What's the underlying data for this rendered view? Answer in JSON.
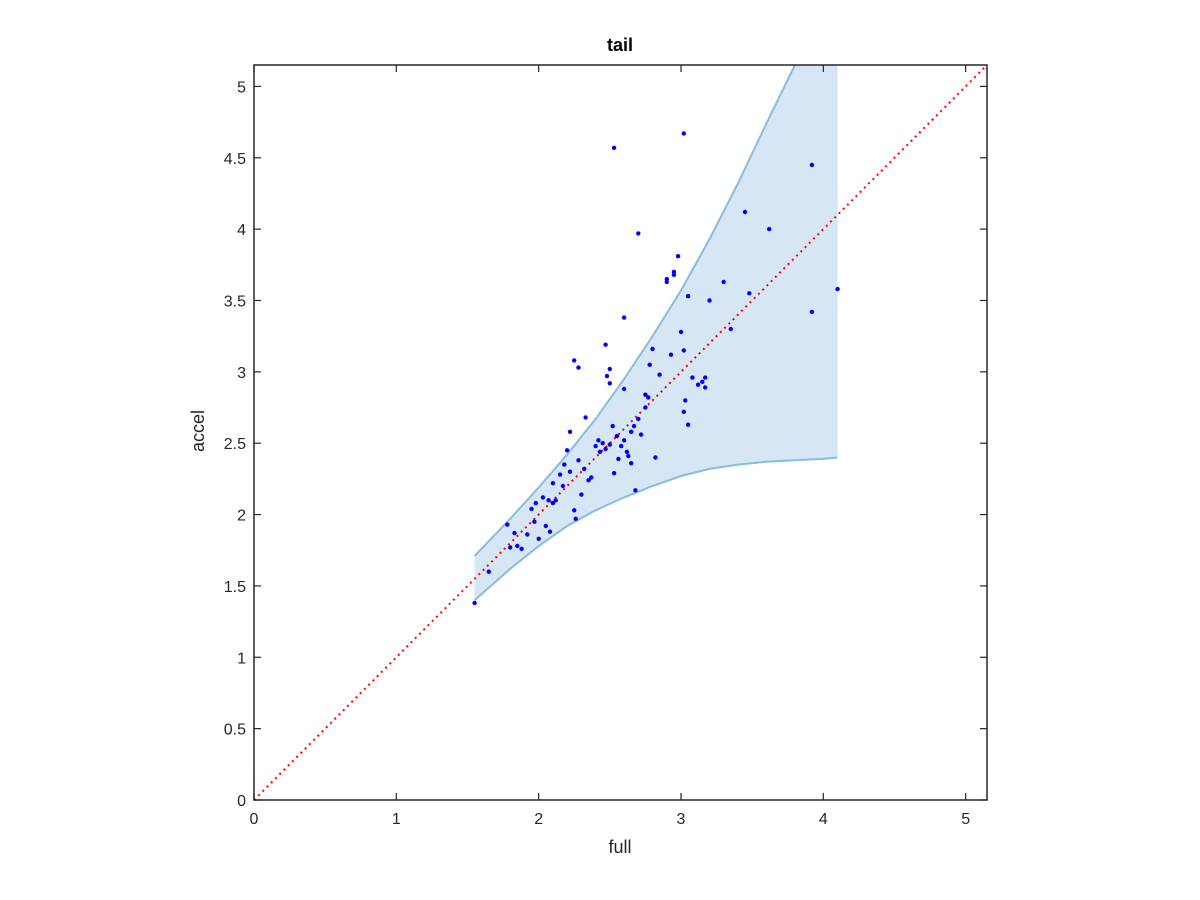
{
  "chart_data": {
    "type": "scatter",
    "title": "tail",
    "xlabel": "full",
    "ylabel": "accel",
    "xlim": [
      0,
      5.15
    ],
    "ylim": [
      0,
      5.15
    ],
    "xticks": [
      0,
      1,
      2,
      3,
      4,
      5
    ],
    "xtick_labels": [
      "0",
      "1",
      "2",
      "3",
      "4",
      "5"
    ],
    "yticks": [
      0,
      0.5,
      1,
      1.5,
      2,
      2.5,
      3,
      3.5,
      4,
      4.5,
      5
    ],
    "ytick_labels": [
      "0",
      "0.5",
      "1",
      "1.5",
      "2",
      "2.5",
      "3",
      "3.5",
      "4",
      "4.5",
      "5"
    ],
    "grid": false,
    "colors": {
      "points": "#0000ff",
      "band_fill": "#d6e6f4",
      "band_edge": "#86bde0",
      "reference_line": "#ff0000",
      "axes": "#262626"
    },
    "reference_line": {
      "style": "dotted",
      "x": [
        0,
        5.15
      ],
      "y": [
        0,
        5.15
      ]
    },
    "band": {
      "x": [
        1.55,
        1.8,
        2.0,
        2.2,
        2.4,
        2.6,
        2.8,
        3.0,
        3.2,
        3.4,
        3.6,
        3.8,
        4.0,
        4.1
      ],
      "upper": [
        1.71,
        1.97,
        2.19,
        2.42,
        2.67,
        2.95,
        3.25,
        3.57,
        3.93,
        4.32,
        4.74,
        5.15,
        5.15,
        5.15
      ],
      "lower": [
        1.4,
        1.62,
        1.78,
        1.92,
        2.03,
        2.12,
        2.2,
        2.27,
        2.32,
        2.35,
        2.37,
        2.38,
        2.39,
        2.4
      ]
    },
    "series": [
      {
        "x": [
          1.55,
          1.65,
          1.78,
          1.8,
          1.83,
          1.85,
          1.88,
          1.92,
          1.95,
          1.97,
          1.98,
          2.0,
          2.03,
          2.05,
          2.07,
          2.08,
          2.1,
          2.1,
          2.12,
          2.15,
          2.17,
          2.18,
          2.2,
          2.22,
          2.25,
          2.26,
          2.28,
          2.3,
          2.32,
          2.33,
          2.35,
          2.37,
          2.4,
          2.42,
          2.43,
          2.45,
          2.47,
          2.48,
          2.5,
          2.5,
          2.52,
          2.53,
          2.55,
          2.56,
          2.58,
          2.6,
          2.6,
          2.62,
          2.63,
          2.65,
          2.65,
          2.67,
          2.68,
          2.7,
          2.72,
          2.75,
          2.75,
          2.77,
          2.78,
          2.8,
          2.82,
          2.85,
          2.9,
          2.93,
          2.95,
          2.98,
          3.0,
          3.02,
          3.02,
          3.03,
          3.05,
          3.05,
          3.08,
          3.12,
          3.15,
          3.17,
          3.2,
          3.3,
          3.35,
          3.45,
          3.48,
          3.62,
          3.92,
          3.92,
          4.1,
          2.25,
          2.28,
          2.47,
          2.5,
          2.53,
          2.6,
          2.7,
          2.9,
          2.95,
          3.02,
          3.17,
          2.22
        ],
        "y": [
          1.38,
          1.6,
          1.93,
          1.77,
          1.87,
          1.78,
          1.76,
          1.86,
          2.04,
          1.95,
          2.08,
          1.83,
          2.12,
          1.92,
          2.1,
          1.88,
          2.08,
          2.22,
          2.1,
          2.28,
          2.2,
          2.35,
          2.45,
          2.3,
          2.03,
          1.97,
          2.38,
          2.14,
          2.32,
          2.68,
          2.24,
          2.26,
          2.48,
          2.52,
          2.44,
          2.5,
          2.46,
          2.97,
          2.49,
          2.92,
          2.62,
          2.29,
          2.55,
          2.39,
          2.48,
          2.88,
          2.52,
          2.44,
          2.41,
          2.58,
          2.36,
          2.62,
          2.17,
          2.67,
          2.56,
          2.75,
          2.84,
          2.82,
          3.05,
          3.16,
          2.4,
          2.98,
          3.63,
          3.12,
          3.68,
          3.81,
          3.28,
          3.15,
          2.72,
          2.8,
          3.53,
          2.63,
          2.96,
          2.91,
          2.93,
          2.89,
          3.5,
          3.63,
          3.3,
          4.12,
          3.55,
          4.0,
          4.45,
          3.42,
          3.58,
          3.08,
          3.03,
          3.19,
          3.02,
          4.57,
          3.38,
          3.97,
          3.65,
          3.7,
          4.67,
          2.96,
          2.58
        ]
      }
    ]
  }
}
